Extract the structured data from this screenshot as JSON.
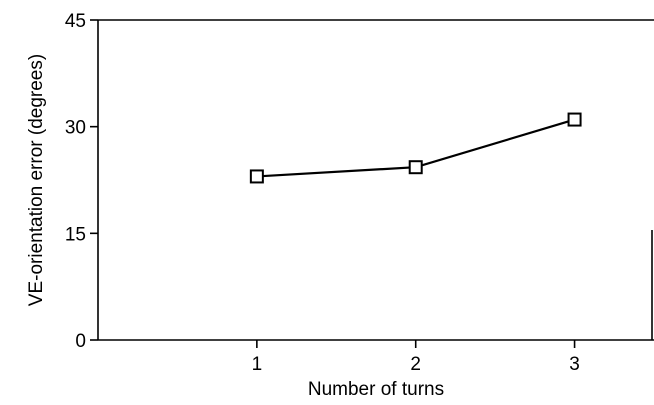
{
  "chart_data": {
    "type": "line",
    "title": "",
    "xlabel": "Number of turns",
    "ylabel": "VE-orientation error (degrees)",
    "x": [
      1,
      2,
      3
    ],
    "xticks": [
      "1",
      "2",
      "3"
    ],
    "xlim": [
      0,
      3.5
    ],
    "yticks": [
      "0",
      "15",
      "30",
      "45"
    ],
    "ytick_values": [
      0,
      15,
      30,
      45
    ],
    "ylim": [
      0,
      45
    ],
    "grid": false,
    "series": [
      {
        "values": [
          23,
          24.3,
          31
        ],
        "marker": "open-square",
        "color": "#000000"
      }
    ]
  }
}
